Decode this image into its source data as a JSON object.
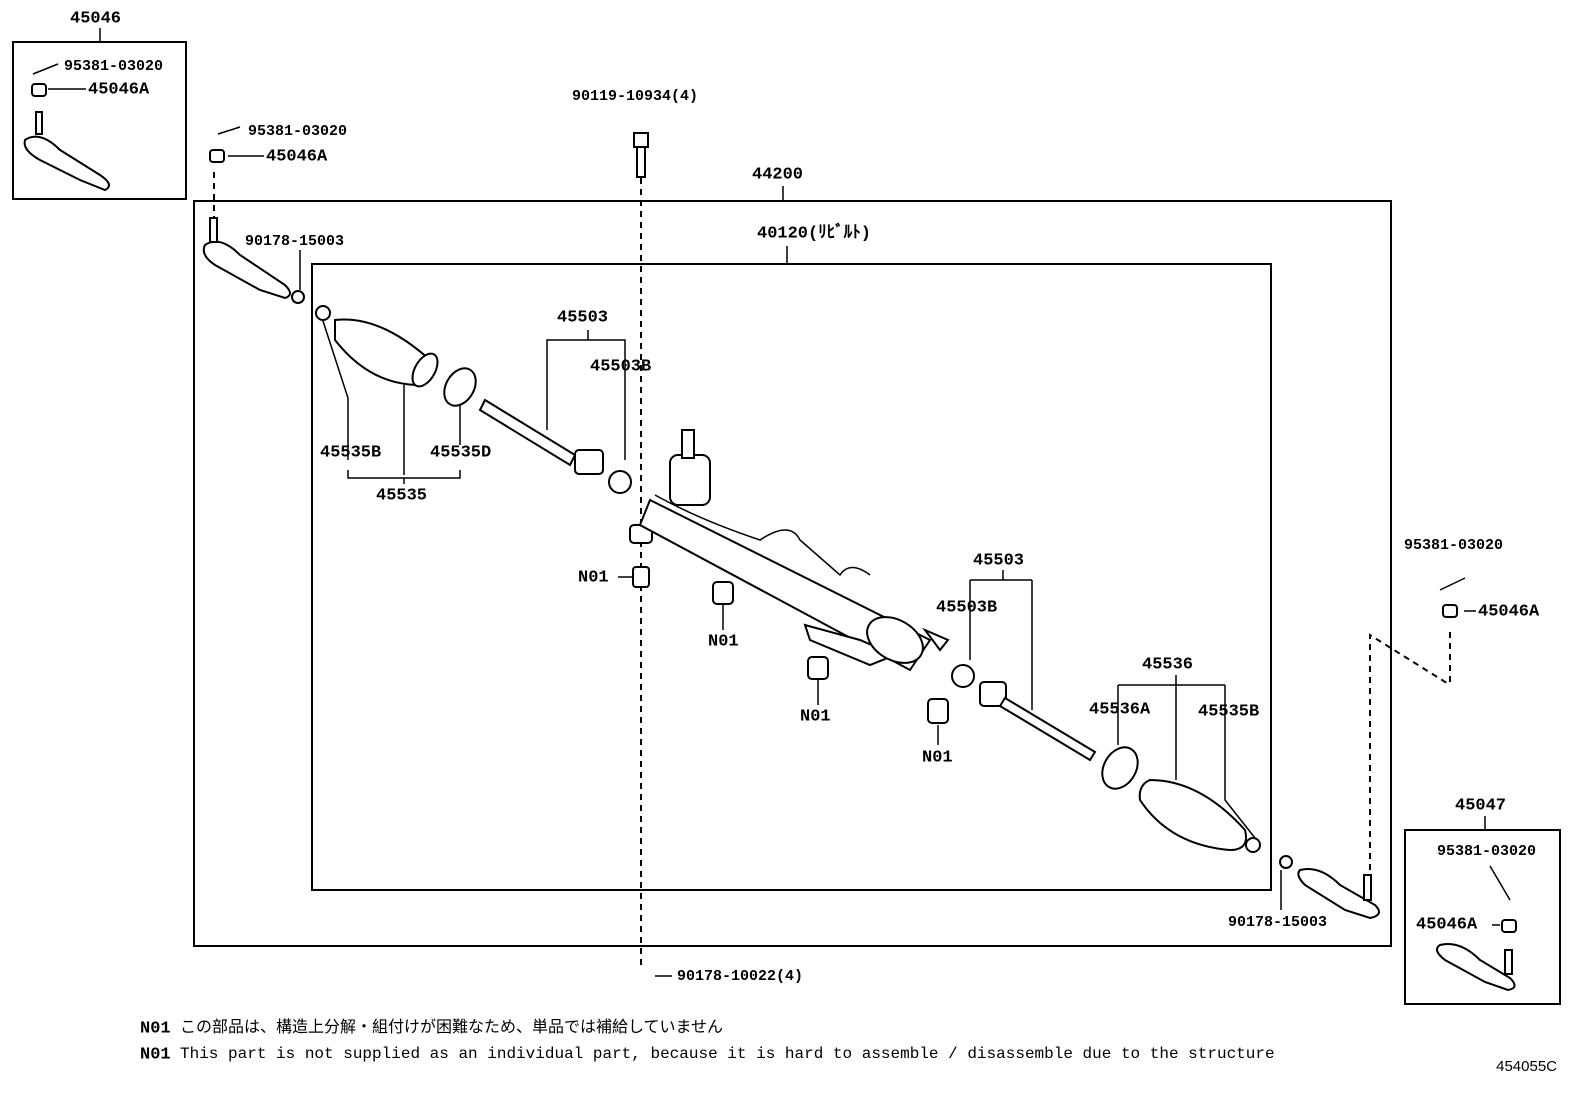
{
  "callouts": [
    "45046",
    "95381-03020",
    "45046A",
    "95381-03020",
    "45046A",
    "90119-10934(4)",
    "44200",
    "40120(ﾘﾋﾞﾙﾄ)",
    "90178-15003",
    "45503",
    "45503B",
    "45535B",
    "45535D",
    "45535",
    "N01",
    "N01",
    "N01",
    "N01",
    "45503",
    "45503B",
    "95381-03020",
    "45046A",
    "45536",
    "45536A",
    "45535B",
    "45047",
    "95381-03020",
    "45046A",
    "90178-15003",
    "90178-10022(4)"
  ],
  "notes": [
    {
      "code": "N01",
      "text": "この部品は、構造上分解・組付けが困難なため、単品では補給していません"
    },
    {
      "code": "N01",
      "text": "This part is not supplied as an individual part, because it is hard to assemble / disassemble due to the structure"
    }
  ],
  "diagram_id": "454055C"
}
